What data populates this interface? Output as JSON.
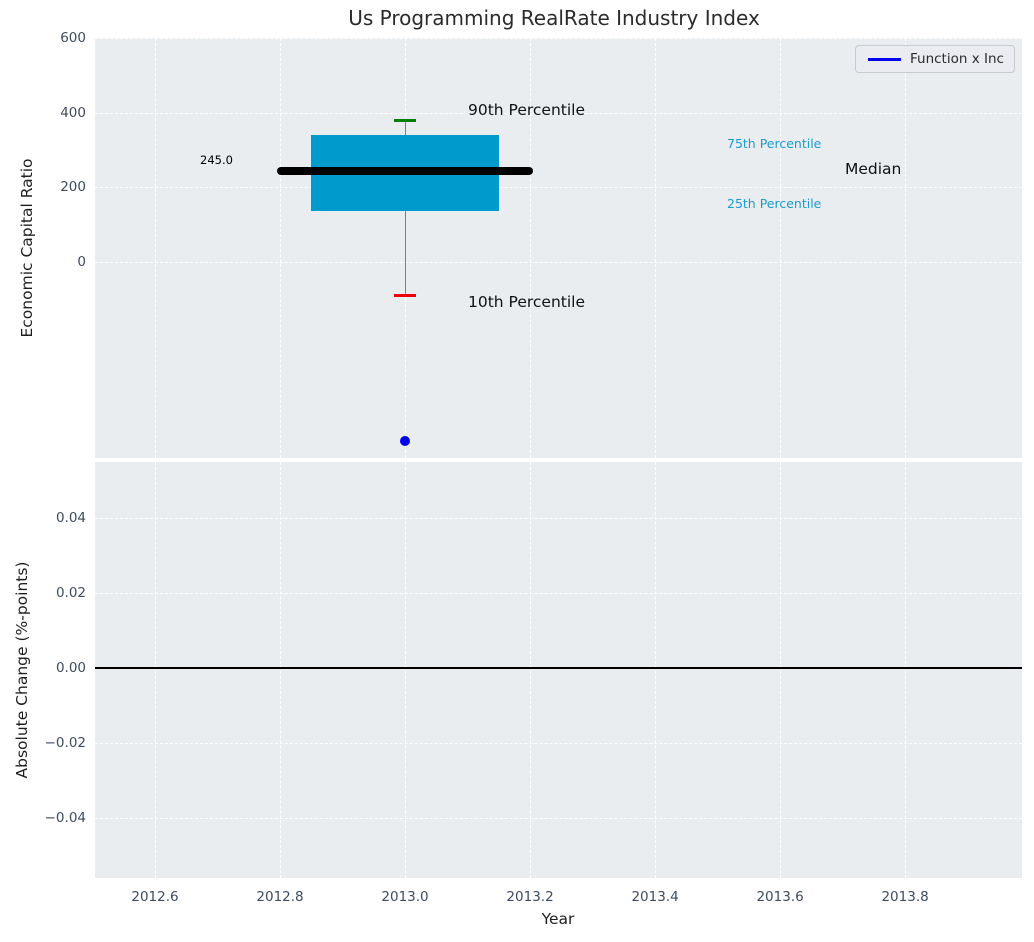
{
  "figure": {
    "title": "Us Programming RealRate Industry Index",
    "background": "#ffffff",
    "axes_background": "#e9edf0",
    "grid_color": "#ffffff"
  },
  "top_plot": {
    "ylabel": "Economic Capital Ratio",
    "legend": {
      "label": "Function x Inc",
      "line_color": "#0000ee"
    },
    "ytick_labels": [
      "600",
      "400",
      "200",
      "0"
    ],
    "annotations": {
      "p90": "90th Percentile",
      "p75": "75th Percentile",
      "median": "Median",
      "p25": "25th Percentile",
      "p10": "10th Percentile",
      "median_value": "245.0"
    }
  },
  "bottom_plot": {
    "ylabel": "Absolute Change (%-points)",
    "xlabel": "Year",
    "ytick_labels": [
      "0.04",
      "0.02",
      "0.00",
      "−0.02",
      "−0.04"
    ],
    "xtick_labels": [
      "2012.6",
      "2012.8",
      "2013.0",
      "2013.2",
      "2013.4",
      "2013.6",
      "2013.8"
    ]
  },
  "chart_data": [
    {
      "type": "box",
      "title": "Us Programming RealRate Industry Index",
      "ylabel": "Economic Capital Ratio",
      "legend": [
        "Function x Inc"
      ],
      "legend_position": "upper right",
      "x": 2013.0,
      "series": {
        "p90": 380,
        "p75": 340,
        "median": 245,
        "p25": 137,
        "p10": -90,
        "observation_dot": -480
      },
      "median_label": "245.0",
      "box_width": 0.3,
      "median_line_width": 0.41,
      "cap_width": 0.036,
      "xlim": [
        2012.504,
        2013.987
      ],
      "ylim": [
        -526,
        601
      ],
      "yticks": [
        600,
        400,
        200,
        0
      ],
      "xticks": [
        2012.6,
        2012.8,
        2013.0,
        2013.2,
        2013.4,
        2013.6,
        2013.8
      ],
      "grid": true,
      "colors": {
        "box": "#009bcd",
        "median": "#000000",
        "p90_cap": "#008000",
        "p10_cap": "#ee0000",
        "whisker": "#7f7f7f",
        "dot": "#0000ee"
      }
    },
    {
      "type": "line",
      "ylabel": "Absolute Change (%-points)",
      "xlabel": "Year",
      "xlim": [
        2012.504,
        2013.987
      ],
      "ylim": [
        -0.056,
        0.0549
      ],
      "yticks": [
        0.04,
        0.02,
        0,
        -0.02,
        -0.04
      ],
      "xticks": [
        2012.6,
        2012.8,
        2013.0,
        2013.2,
        2013.4,
        2013.6,
        2013.8
      ],
      "zero_line_y": 0,
      "series": [],
      "grid": true
    }
  ]
}
